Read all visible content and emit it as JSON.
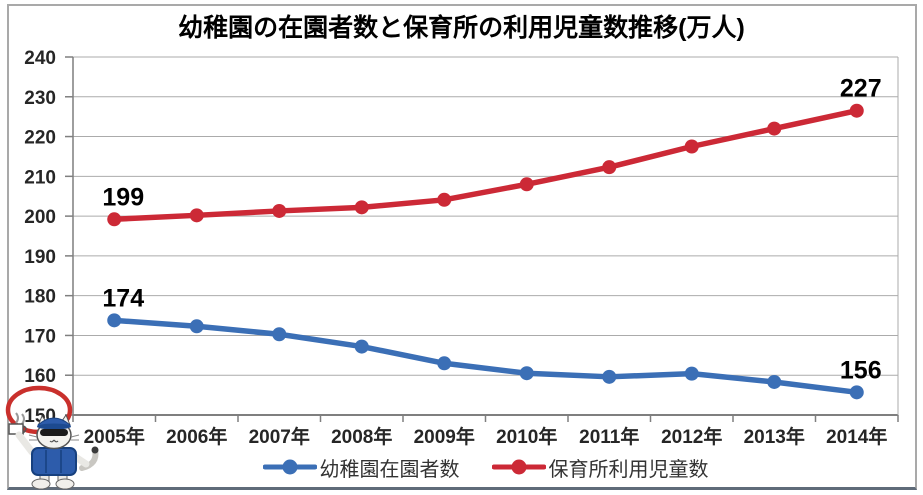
{
  "chart_data": {
    "type": "line",
    "title": "幼稚園の在園者数と保育所の利用児童数推移(万人)",
    "categories": [
      "2005年",
      "2006年",
      "2007年",
      "2008年",
      "2009年",
      "2010年",
      "2011年",
      "2012年",
      "2013年",
      "2014年"
    ],
    "series": [
      {
        "name": "幼稚園在園者数",
        "color": "#3B6FB6",
        "values": [
          173.8,
          172.3,
          170.3,
          167.2,
          163.0,
          160.5,
          159.6,
          160.4,
          158.3,
          155.7
        ]
      },
      {
        "name": "保育所利用児童数",
        "color": "#CC2936",
        "values": [
          199.2,
          200.2,
          201.3,
          202.2,
          204.1,
          208.0,
          212.3,
          217.5,
          222.0,
          226.5
        ]
      }
    ],
    "point_labels": [
      {
        "series_index": 1,
        "point_index": 0,
        "text": "199"
      },
      {
        "series_index": 0,
        "point_index": 0,
        "text": "174"
      },
      {
        "series_index": 1,
        "point_index": 9,
        "text": "227"
      },
      {
        "series_index": 0,
        "point_index": 9,
        "text": "156"
      }
    ],
    "ylim": [
      150,
      240
    ],
    "ytick_step": 10,
    "yticks": [
      "240",
      "230",
      "220",
      "210",
      "200",
      "190",
      "180",
      "170",
      "160",
      "150"
    ],
    "grid": true,
    "legend_position": "bottom",
    "annotations": {
      "circled_y_tick": "150",
      "circle_color": "#C9302C"
    },
    "colors": {
      "gridline": "#ABABAB",
      "axis": "#7F7F7F",
      "tick_text": "#262626",
      "label_text": "#000000"
    }
  }
}
